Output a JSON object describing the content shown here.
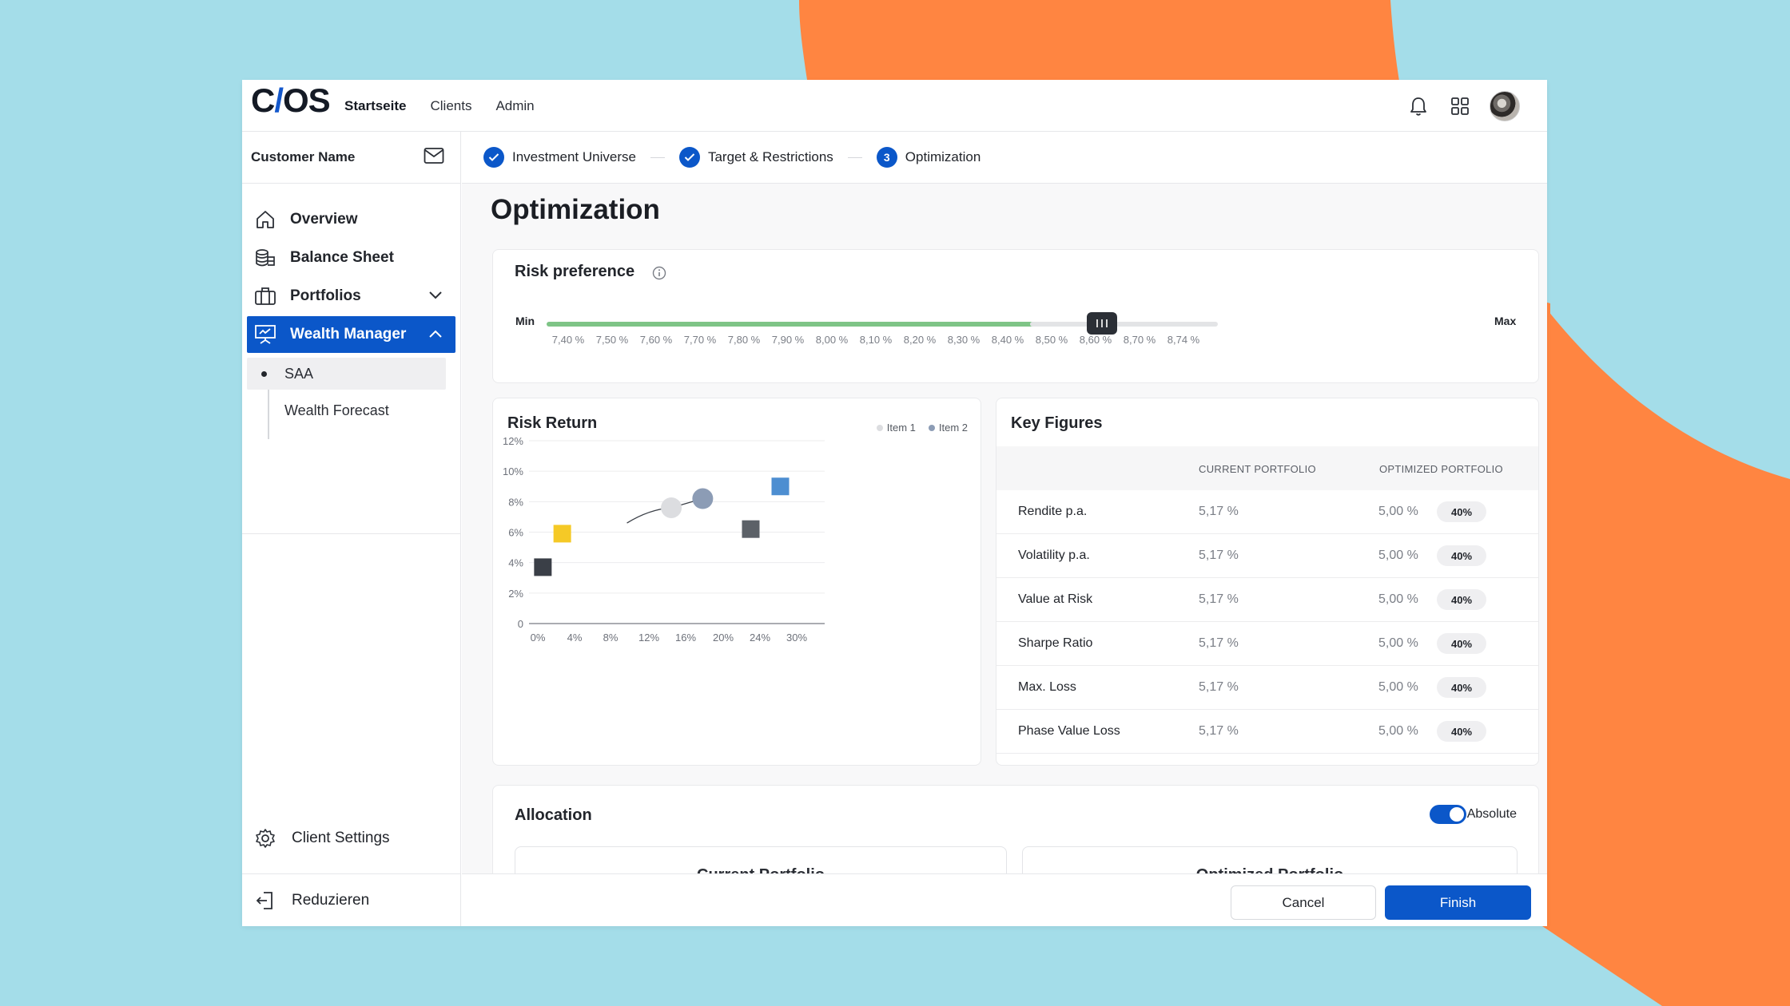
{
  "brand": {
    "logo_pre": "C",
    "logo_slash": "/",
    "logo_post": "OS",
    "accent": "#0b57c9",
    "background": "#a4dde9",
    "blob_color": "#ff8541"
  },
  "topnav": {
    "items": [
      "Startseite",
      "Clients",
      "Admin"
    ],
    "active": "Startseite"
  },
  "topbar_icons": [
    "bell-icon",
    "grid-icon",
    "avatar"
  ],
  "sidebar": {
    "customer_name": "Customer Name",
    "items": [
      {
        "label": "Overview",
        "icon": "home-icon"
      },
      {
        "label": "Balance Sheet",
        "icon": "coins-icon"
      },
      {
        "label": "Portfolios",
        "icon": "briefcase-icon"
      },
      {
        "label": "Wealth Manager",
        "icon": "presentation-icon"
      }
    ],
    "sub_items": [
      "SAA",
      "Wealth Forecast"
    ],
    "client_settings": "Client Settings",
    "reduce": "Reduzieren"
  },
  "stepper": {
    "steps": [
      {
        "label": "Investment Universe",
        "state": "done"
      },
      {
        "label": "Target & Restrictions",
        "state": "done"
      },
      {
        "label": "Optimization",
        "state": "current",
        "number": "3"
      }
    ]
  },
  "page": {
    "title": "Optimization"
  },
  "risk_preference": {
    "title": "Risk preference",
    "min_label": "Min",
    "max_label": "Max",
    "ticks": [
      "7,40 %",
      "7,50 %",
      "7,60 %",
      "7,70 %",
      "7,80 %",
      "7,90 %",
      "8,00 %",
      "8,10 %",
      "8,20 %",
      "8,30 %",
      "8,40 %",
      "8,50 %",
      "8,60 %",
      "8,70 %",
      "8,74 %"
    ],
    "active_segments": 11,
    "selected_value": "8,60 %",
    "active_color": "#7ec486",
    "inactive_color": "#e3e4e6"
  },
  "risk_return": {
    "title": "Risk Return",
    "legend": [
      {
        "name": "Item 1",
        "color": "#dcdde0"
      },
      {
        "name": "Item 2",
        "color": "#8c9cb5"
      }
    ]
  },
  "chart_data": {
    "type": "scatter",
    "title": "Risk Return",
    "x_ticks": [
      "0%",
      "4%",
      "8%",
      "12%",
      "16%",
      "20%",
      "24%",
      "30%"
    ],
    "y_ticks": [
      "0",
      "2%",
      "4%",
      "6%",
      "8%",
      "10%",
      "12%"
    ],
    "xlim": [
      0,
      32
    ],
    "ylim": [
      0,
      12
    ],
    "squares": [
      {
        "x": 1.5,
        "y": 3.7,
        "color": "#3a3f47"
      },
      {
        "x": 3.6,
        "y": 5.9,
        "color": "#f5c926"
      },
      {
        "x": 24.0,
        "y": 6.2,
        "color": "#5c6168"
      },
      {
        "x": 27.2,
        "y": 9.0,
        "color": "#4d8ed1"
      }
    ],
    "circles": [
      {
        "series": "Item 1",
        "x": 15.4,
        "y": 7.6,
        "color": "#dcdde0"
      },
      {
        "series": "Item 2",
        "x": 18.8,
        "y": 8.2,
        "color": "#8c9cb5"
      }
    ],
    "frontier": [
      [
        10.6,
        6.6
      ],
      [
        13.2,
        7.3
      ],
      [
        15.4,
        7.6
      ],
      [
        18.8,
        8.2
      ]
    ]
  },
  "key_figures": {
    "title": "Key Figures",
    "columns": [
      "CURRENT PORTFOLIO",
      "OPTIMIZED PORTFOLIO"
    ],
    "rows": [
      {
        "label": "Rendite p.a.",
        "current": "5,17 %",
        "optimized": "5,00 %",
        "badge": "40%"
      },
      {
        "label": "Volatility p.a.",
        "current": "5,17 %",
        "optimized": "5,00 %",
        "badge": "40%"
      },
      {
        "label": "Value at Risk",
        "current": "5,17 %",
        "optimized": "5,00 %",
        "badge": "40%"
      },
      {
        "label": "Sharpe Ratio",
        "current": "5,17 %",
        "optimized": "5,00 %",
        "badge": "40%"
      },
      {
        "label": "Max. Loss",
        "current": "5,17 %",
        "optimized": "5,00 %",
        "badge": "40%"
      },
      {
        "label": "Phase Value Loss",
        "current": "5,17 %",
        "optimized": "5,00 %",
        "badge": "40%"
      }
    ]
  },
  "allocation": {
    "title": "Allocation",
    "toggle_label": "Absolute",
    "toggle_on": true,
    "current_title": "Current Portfolio",
    "optimized_title": "Optimized Portfolio"
  },
  "footer": {
    "cancel": "Cancel",
    "finish": "Finish"
  }
}
